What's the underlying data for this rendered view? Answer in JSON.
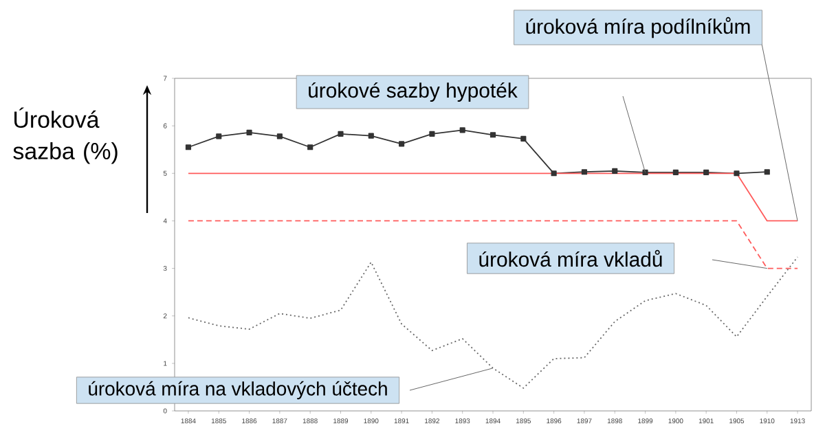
{
  "chart_data": {
    "type": "line",
    "ylabel": "Úroková sazba (%)",
    "categories": [
      "1884",
      "1885",
      "1886",
      "1887",
      "1888",
      "1889",
      "1890",
      "1891",
      "1892",
      "1893",
      "1894",
      "1895",
      "1896",
      "1897",
      "1898",
      "1899",
      "1900",
      "1901",
      "1905",
      "1910",
      "1913"
    ],
    "ylim": [
      0,
      7
    ],
    "yticks": [
      0,
      1,
      2,
      3,
      4,
      5,
      6,
      7
    ],
    "series": [
      {
        "name": "úrokové sazby hypoték",
        "color": "#333333",
        "marker": "square",
        "line_style": "solid",
        "values": [
          5.55,
          5.78,
          5.86,
          5.78,
          5.55,
          5.83,
          5.79,
          5.62,
          5.83,
          5.91,
          5.81,
          5.73,
          5.0,
          5.03,
          5.05,
          5.02,
          5.02,
          5.02,
          5.0,
          5.03,
          null
        ]
      },
      {
        "name": "úroková míra podílníkům",
        "color": "#ff5b5b",
        "marker": "none",
        "line_style": "solid",
        "values": [
          5,
          5,
          5,
          5,
          5,
          5,
          5,
          5,
          5,
          5,
          5,
          5,
          5,
          5,
          5,
          5,
          5,
          5,
          5,
          4,
          4
        ]
      },
      {
        "name": "úroková míra vkladů",
        "color": "#ff5b5b",
        "marker": "none",
        "line_style": "dashed",
        "values": [
          4,
          4,
          4,
          4,
          4,
          4,
          4,
          4,
          4,
          4,
          4,
          4,
          4,
          4,
          4,
          4,
          4,
          4,
          4,
          3,
          3
        ]
      },
      {
        "name": "úroková míra na vkladových účtech",
        "color": "#666666",
        "marker": "none",
        "line_style": "dotted",
        "values": [
          1.96,
          1.79,
          1.72,
          2.05,
          1.95,
          2.12,
          3.13,
          1.83,
          1.27,
          1.52,
          0.9,
          0.48,
          1.1,
          1.12,
          1.88,
          2.32,
          2.47,
          2.22,
          1.56,
          2.41,
          3.24
        ]
      }
    ]
  }
}
